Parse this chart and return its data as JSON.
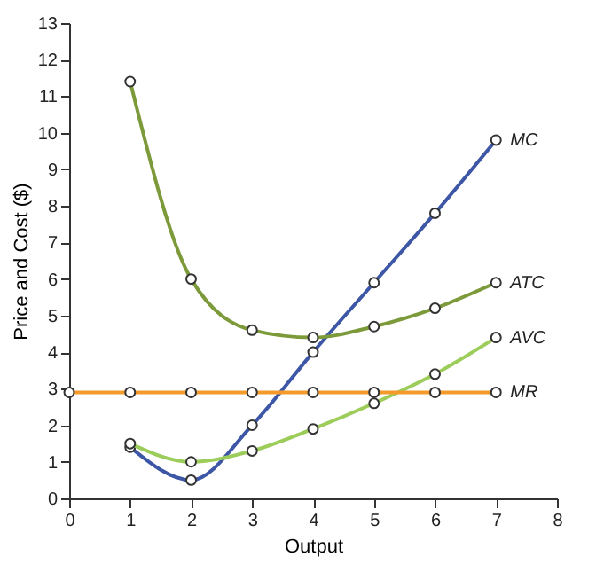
{
  "chart_data": {
    "type": "line",
    "xlabel": "Output",
    "ylabel": "Price and Cost ($)",
    "xlim": [
      0,
      8
    ],
    "ylim": [
      0,
      13
    ],
    "xticks": [
      0,
      1,
      2,
      3,
      4,
      5,
      6,
      7,
      8
    ],
    "yticks": [
      0,
      1,
      2,
      3,
      4,
      5,
      6,
      7,
      8,
      9,
      10,
      11,
      12,
      13
    ],
    "grid": false,
    "legend": false,
    "marker": "circle",
    "line_style": "solid",
    "series": [
      {
        "name": "MC",
        "color": "#3d57a6",
        "x": [
          1,
          2,
          3,
          4,
          5,
          6,
          7
        ],
        "values": [
          1.4,
          0.5,
          2,
          4,
          5.9,
          7.8,
          9.8
        ]
      },
      {
        "name": "ATC",
        "color": "#7d9a3a",
        "x": [
          1,
          2,
          3,
          4,
          5,
          6,
          7
        ],
        "values": [
          11.4,
          6,
          4.6,
          4.4,
          4.7,
          5.2,
          5.9
        ]
      },
      {
        "name": "AVC",
        "color": "#9ccc5a",
        "x": [
          1,
          2,
          3,
          4,
          5,
          6,
          7
        ],
        "values": [
          1.5,
          1,
          1.3,
          1.9,
          2.6,
          3.4,
          4.4
        ]
      },
      {
        "name": "MR",
        "color": "#f39a2b",
        "x": [
          0,
          1,
          2,
          3,
          4,
          5,
          6,
          7
        ],
        "values": [
          2.9,
          2.9,
          2.9,
          2.9,
          2.9,
          2.9,
          2.9,
          2.9
        ]
      }
    ]
  }
}
